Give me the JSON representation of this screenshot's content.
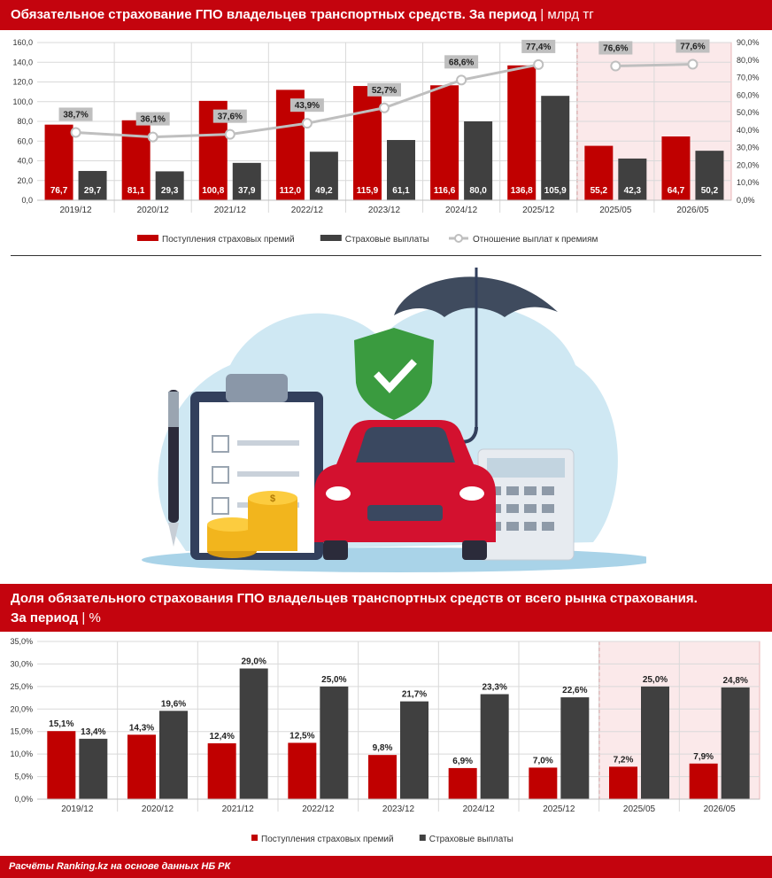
{
  "header": {
    "title1_main": "Обязательное страхование ГПО владельцев транспортных средств. За период",
    "title1_unit": "млрд тг",
    "title2_main": "Доля обязательного страхования ГПО владельцев транспортных средств от всего рынка страхования.",
    "title2_line2": "За период",
    "title2_unit": "%"
  },
  "footer": {
    "source": "Расчёты Ranking.kz на основе данных НБ РК"
  },
  "colors": {
    "premiums": "#c00000",
    "payouts": "#404040",
    "ratio": "#bfbfbf",
    "highlight": "#fbe9ea",
    "brand": "#c4040e"
  },
  "chart_data": [
    {
      "type": "bar",
      "categories": [
        "2019/12",
        "2020/12",
        "2021/12",
        "2022/12",
        "2023/12",
        "2024/12",
        "2025/12",
        "2025/05",
        "2026/05"
      ],
      "series": [
        {
          "name": "Поступления страховых премий",
          "values": [
            76.7,
            81.1,
            100.8,
            112.0,
            115.9,
            116.6,
            136.8,
            55.2,
            64.7
          ],
          "labels": [
            "76,7",
            "81,1",
            "100,8",
            "112,0",
            "115,9",
            "116,6",
            "136,8",
            "55,2",
            "64,7"
          ]
        },
        {
          "name": "Страховые выплаты",
          "values": [
            29.7,
            29.3,
            37.9,
            49.2,
            61.1,
            80.0,
            105.9,
            42.3,
            50.2
          ],
          "labels": [
            "29,7",
            "29,3",
            "37,9",
            "49,2",
            "61,1",
            "80,0",
            "105,9",
            "42,3",
            "50,2"
          ]
        },
        {
          "name": "Отношение выплат к премиям",
          "type": "line",
          "axis": "right",
          "values": [
            38.7,
            36.1,
            37.6,
            43.9,
            52.7,
            68.6,
            77.4,
            76.6,
            77.6
          ],
          "labels": [
            "38,7%",
            "36,1%",
            "37,6%",
            "43,9%",
            "52,7%",
            "68,6%",
            "77,4%",
            "76,6%",
            "77,6%"
          ]
        }
      ],
      "ylim": [
        0,
        160
      ],
      "yticks": [
        "0,0",
        "20,0",
        "40,0",
        "60,0",
        "80,0",
        "100,0",
        "120,0",
        "140,0",
        "160,0"
      ],
      "y2lim": [
        0,
        90
      ],
      "y2ticks": [
        "0,0%",
        "10,0%",
        "20,0%",
        "30,0%",
        "40,0%",
        "50,0%",
        "60,0%",
        "70,0%",
        "80,0%",
        "90,0%"
      ],
      "highlight_categories": [
        "2025/05",
        "2026/05"
      ],
      "legend": [
        "Поступления страховых премий",
        "Страховые выплаты",
        "Отношение выплат к премиям"
      ],
      "legend_position": "bottom",
      "grid": true
    },
    {
      "type": "bar",
      "categories": [
        "2019/12",
        "2020/12",
        "2021/12",
        "2022/12",
        "2023/12",
        "2024/12",
        "2025/12",
        "2025/05",
        "2026/05"
      ],
      "series": [
        {
          "name": "Поступления страховых премий",
          "values": [
            15.1,
            14.3,
            12.4,
            12.5,
            9.8,
            6.9,
            7.0,
            7.2,
            7.9
          ],
          "labels": [
            "15,1%",
            "14,3%",
            "12,4%",
            "12,5%",
            "9,8%",
            "6,9%",
            "7,0%",
            "7,2%",
            "7,9%"
          ]
        },
        {
          "name": "Страховые выплаты",
          "values": [
            13.4,
            19.6,
            29.0,
            25.0,
            21.7,
            23.3,
            22.6,
            25.0,
            24.8
          ],
          "labels": [
            "13,4%",
            "19,6%",
            "29,0%",
            "25,0%",
            "21,7%",
            "23,3%",
            "22,6%",
            "25,0%",
            "24,8%"
          ]
        }
      ],
      "ylim": [
        0,
        35
      ],
      "yticks": [
        "0,0%",
        "5,0%",
        "10,0%",
        "15,0%",
        "20,0%",
        "25,0%",
        "30,0%",
        "35,0%"
      ],
      "highlight_categories": [
        "2025/05",
        "2026/05"
      ],
      "legend": [
        "Поступления страховых премий",
        "Страховые выплаты"
      ],
      "legend_position": "bottom",
      "grid": true
    }
  ]
}
